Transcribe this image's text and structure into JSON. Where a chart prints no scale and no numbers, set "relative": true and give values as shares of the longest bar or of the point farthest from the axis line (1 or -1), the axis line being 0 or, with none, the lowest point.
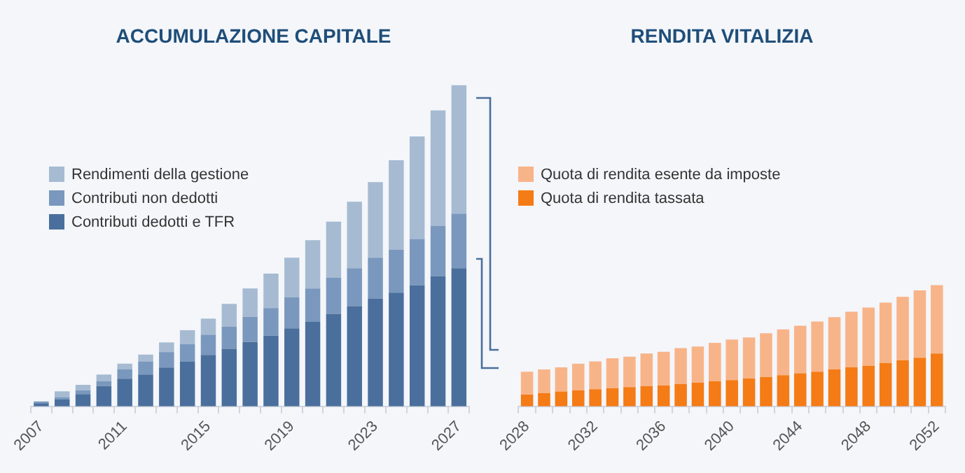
{
  "chart_data": [
    {
      "type": "bar",
      "title": "ACCUMULAZIONE CAPITALE",
      "relative": true,
      "stacked": true,
      "legend": "top left",
      "categories": [
        "2007",
        null,
        null,
        null,
        "2011",
        null,
        null,
        null,
        "2015",
        null,
        null,
        null,
        "2019",
        null,
        null,
        null,
        "2023",
        null,
        null,
        null,
        "2027"
      ],
      "series": [
        {
          "name": "Contributi dedotti e TFR",
          "color": "#4a6f9c",
          "values": [
            0.01,
            0.021,
            0.038,
            0.063,
            0.086,
            0.099,
            0.121,
            0.139,
            0.16,
            0.179,
            0.2,
            0.22,
            0.243,
            0.263,
            0.288,
            0.311,
            0.336,
            0.354,
            0.377,
            0.405,
            0.43
          ]
        },
        {
          "name": "Contributi non dedotti",
          "color": "#7a98bd",
          "values": [
            0.005,
            0.008,
            0.012,
            0.015,
            0.03,
            0.041,
            0.048,
            0.055,
            0.063,
            0.069,
            0.079,
            0.086,
            0.096,
            0.104,
            0.112,
            0.119,
            0.127,
            0.134,
            0.144,
            0.157,
            0.17
          ]
        },
        {
          "name": "Rendimenti della gestione",
          "color": "#a6bbd2",
          "values": [
            null,
            0.018,
            0.017,
            0.021,
            0.017,
            0.021,
            0.03,
            0.043,
            0.05,
            0.071,
            0.088,
            0.107,
            0.124,
            0.15,
            0.175,
            0.207,
            0.235,
            0.278,
            0.319,
            0.359,
            0.4
          ]
        }
      ]
    },
    {
      "type": "bar",
      "title": "RENDITA VITALIZIA",
      "relative": true,
      "stacked": true,
      "legend": "top left",
      "categories": [
        "2028",
        null,
        null,
        null,
        "2032",
        null,
        null,
        null,
        "2036",
        null,
        null,
        null,
        "2040",
        null,
        null,
        null,
        "2044",
        null,
        null,
        null,
        "2048",
        null,
        null,
        null,
        "2052"
      ],
      "series": [
        {
          "name": "Quota di rendita tassata",
          "color": "#f47b16",
          "values": [
            0.097,
            0.11,
            0.123,
            0.132,
            0.141,
            0.15,
            0.159,
            0.167,
            0.172,
            0.185,
            0.194,
            0.207,
            0.216,
            0.229,
            0.242,
            0.256,
            0.273,
            0.286,
            0.304,
            0.322,
            0.335,
            0.357,
            0.379,
            0.401,
            0.436
          ]
        },
        {
          "name": "Quota di rendita esente da imposte",
          "color": "#f8b489",
          "values": [
            0.189,
            0.194,
            0.198,
            0.22,
            0.229,
            0.247,
            0.251,
            0.269,
            0.278,
            0.295,
            0.3,
            0.317,
            0.335,
            0.339,
            0.361,
            0.379,
            0.392,
            0.414,
            0.432,
            0.458,
            0.48,
            0.498,
            0.524,
            0.555,
            0.564
          ]
        }
      ]
    }
  ]
}
